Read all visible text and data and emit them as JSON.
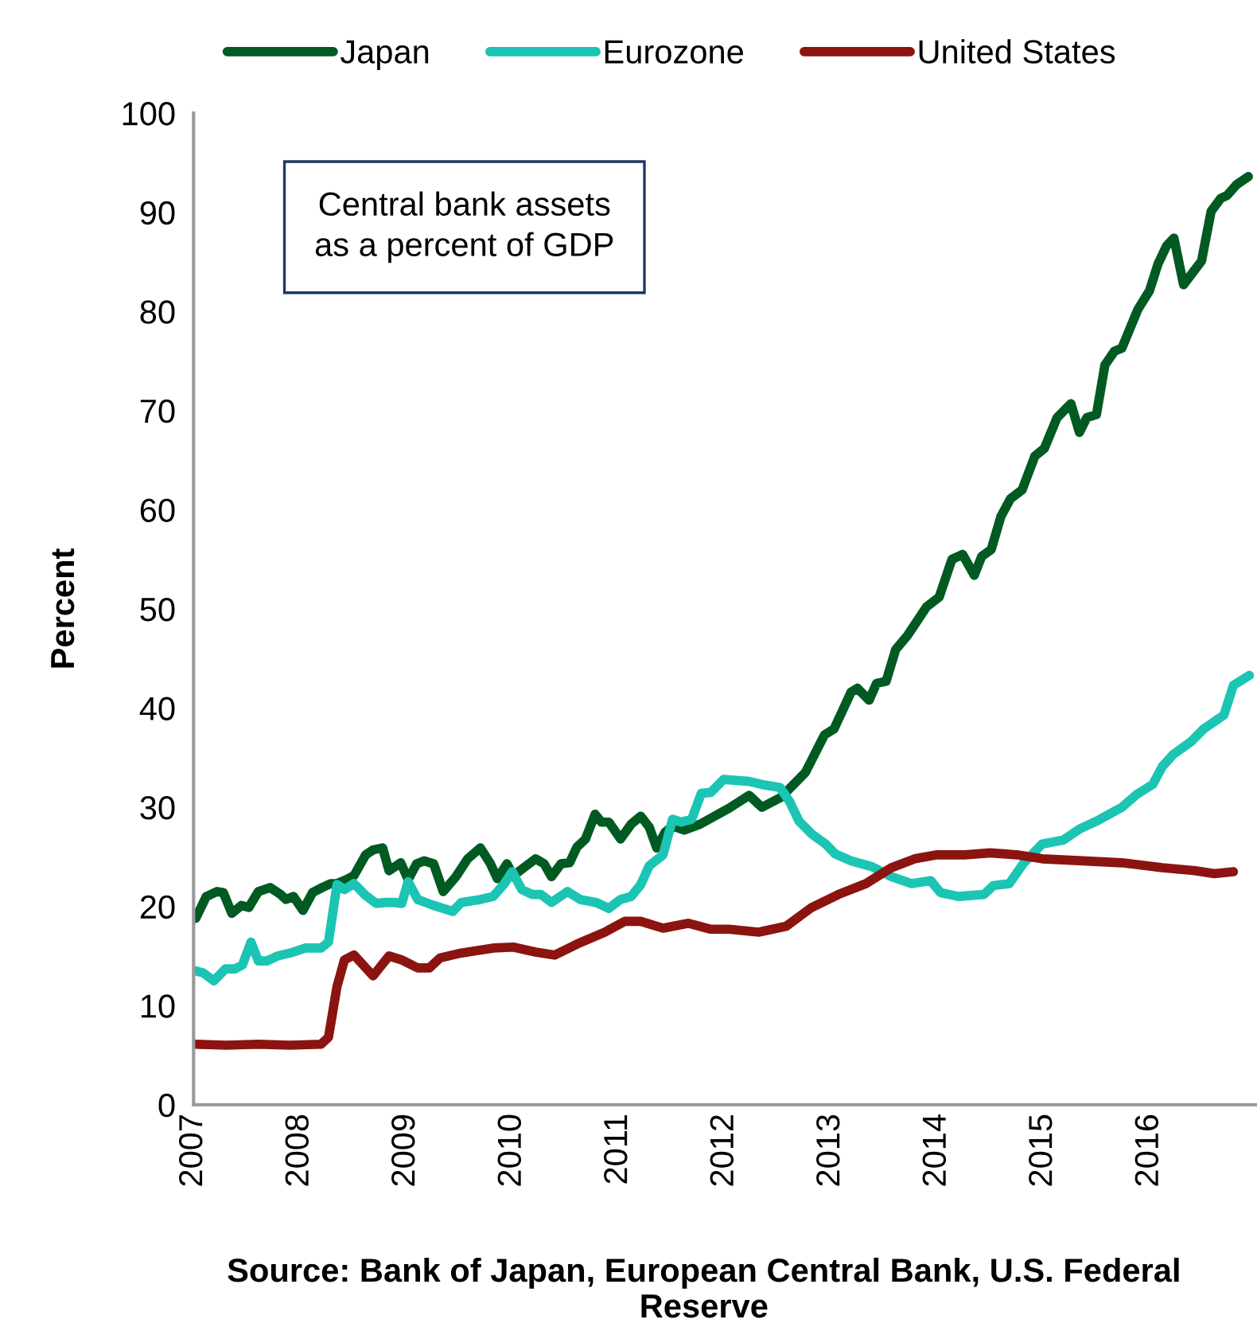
{
  "chart_data": {
    "type": "line",
    "ylabel": "Percent",
    "annotations": [
      "Central bank assets as a percent of GDP",
      "Source: Bank of Japan, European Central Bank, U.S. Federal Reserve"
    ],
    "xlim": [
      2007,
      2017
    ],
    "xticks": [
      2007,
      2008,
      2009,
      2010,
      2011,
      2012,
      2013,
      2014,
      2015,
      2016
    ],
    "ylim": [
      0,
      100
    ],
    "yticks": [
      0,
      10,
      20,
      30,
      40,
      50,
      60,
      70,
      80,
      90,
      100
    ],
    "grid": false,
    "legend": "top",
    "marker": "none",
    "line_style": "solid",
    "series": [
      {
        "name": "Japan",
        "color": "#005a22",
        "x": [
          2007.02,
          2007.12,
          2007.22,
          2007.28,
          2007.36,
          2007.45,
          2007.52,
          2007.61,
          2007.72,
          2007.82,
          2007.87,
          2007.94,
          2008.03,
          2008.12,
          2008.21,
          2008.29,
          2008.35,
          2008.44,
          2008.51,
          2008.62,
          2008.69,
          2008.78,
          2008.84,
          2008.95,
          2009.02,
          2009.1,
          2009.17,
          2009.26,
          2009.35,
          2009.47,
          2009.58,
          2009.7,
          2009.79,
          2009.86,
          2009.95,
          2010.01,
          2010.12,
          2010.22,
          2010.3,
          2010.37,
          2010.46,
          2010.54,
          2010.61,
          2010.69,
          2010.78,
          2010.84,
          2010.91,
          2011.02,
          2011.12,
          2011.21,
          2011.29,
          2011.36,
          2011.44,
          2011.51,
          2011.62,
          2011.77,
          2012.04,
          2012.23,
          2012.35,
          2012.53,
          2012.76,
          2012.94,
          2013.03,
          2013.19,
          2013.25,
          2013.36,
          2013.43,
          2013.52,
          2013.61,
          2013.72,
          2013.9,
          2014.02,
          2014.14,
          2014.24,
          2014.35,
          2014.42,
          2014.51,
          2014.6,
          2014.69,
          2014.8,
          2014.92,
          2015.01,
          2015.13,
          2015.26,
          2015.34,
          2015.41,
          2015.5,
          2015.58,
          2015.67,
          2015.74,
          2015.89,
          2016.0,
          2016.08,
          2016.16,
          2016.23,
          2016.32,
          2016.49,
          2016.58,
          2016.67,
          2016.73,
          2016.82,
          2016.93
        ],
        "values": [
          18.8,
          21,
          21.5,
          21.4,
          19.3,
          20.1,
          19.9,
          21.5,
          21.9,
          21.2,
          20.7,
          21,
          19.6,
          21.4,
          21.9,
          22.3,
          22.3,
          22.7,
          23.1,
          25.2,
          25.7,
          25.9,
          23.6,
          24.4,
          22.7,
          24.3,
          24.6,
          24.3,
          21.5,
          23,
          24.8,
          25.9,
          24.4,
          22.8,
          24.3,
          23.1,
          24,
          24.8,
          24.3,
          23,
          24.3,
          24.4,
          26,
          26.8,
          29.3,
          28.5,
          28.5,
          26.8,
          28.3,
          29.1,
          28,
          25.9,
          27.5,
          28.1,
          27.7,
          28.3,
          29.9,
          31.2,
          30,
          31,
          33.5,
          37.3,
          37.9,
          41.6,
          42,
          40.8,
          42.5,
          42.7,
          45.9,
          47.3,
          50.2,
          51.2,
          55,
          55.5,
          53.4,
          55.3,
          56,
          59.3,
          61.1,
          62,
          65.4,
          66.2,
          69.3,
          70.7,
          67.8,
          69.3,
          69.6,
          74.6,
          76,
          76.3,
          80.2,
          82.1,
          84.8,
          86.6,
          87.4,
          82.7,
          85.1,
          90.1,
          91.4,
          91.7,
          92.8,
          93.6
        ]
      },
      {
        "name": "Eurozone",
        "color": "#1cc4b4",
        "x": [
          2007.02,
          2007.09,
          2007.19,
          2007.3,
          2007.39,
          2007.46,
          2007.54,
          2007.61,
          2007.69,
          2007.79,
          2007.91,
          2008.05,
          2008.2,
          2008.27,
          2008.35,
          2008.42,
          2008.51,
          2008.62,
          2008.72,
          2008.81,
          2008.89,
          2008.96,
          2009.02,
          2009.11,
          2009.26,
          2009.44,
          2009.52,
          2009.7,
          2009.82,
          2009.92,
          2010.0,
          2010.09,
          2010.19,
          2010.27,
          2010.37,
          2010.52,
          2010.64,
          2010.79,
          2010.91,
          2011.02,
          2011.12,
          2011.21,
          2011.29,
          2011.42,
          2011.51,
          2011.59,
          2011.69,
          2011.78,
          2011.87,
          2011.99,
          2012.23,
          2012.35,
          2012.52,
          2012.61,
          2012.7,
          2012.82,
          2012.95,
          2013.04,
          2013.19,
          2013.39,
          2013.57,
          2013.76,
          2013.94,
          2014.03,
          2014.2,
          2014.44,
          2014.53,
          2014.68,
          2014.81,
          2014.99,
          2015.19,
          2015.34,
          2015.5,
          2015.74,
          2015.88,
          2016.03,
          2016.12,
          2016.22,
          2016.39,
          2016.51,
          2016.7,
          2016.79,
          2016.94
        ],
        "values": [
          13.5,
          13.3,
          12.5,
          13.7,
          13.7,
          14.1,
          16.4,
          14.5,
          14.5,
          15,
          15.3,
          15.8,
          15.8,
          16.4,
          22.2,
          21.7,
          22.3,
          21.1,
          20.3,
          20.4,
          20.4,
          20.3,
          22.5,
          20.7,
          20.1,
          19.5,
          20.4,
          20.7,
          21,
          22.2,
          23.5,
          21.7,
          21.2,
          21.2,
          20.4,
          21.5,
          20.7,
          20.4,
          19.8,
          20.7,
          21,
          22.2,
          24.1,
          25.2,
          28.8,
          28.5,
          28.8,
          31.4,
          31.5,
          32.8,
          32.6,
          32.3,
          32,
          30.6,
          28.6,
          27.3,
          26.3,
          25.3,
          24.6,
          24,
          23,
          22.3,
          22.6,
          21.4,
          21,
          21.2,
          22.1,
          22.3,
          24.3,
          26.3,
          26.7,
          27.8,
          28.6,
          30,
          31.3,
          32.3,
          34.1,
          35.3,
          36.6,
          37.9,
          39.3,
          42.3,
          43.3
        ]
      },
      {
        "name": "United States",
        "color": "#8b1410",
        "x": [
          2007.02,
          2007.31,
          2007.61,
          2007.91,
          2008.2,
          2008.27,
          2008.35,
          2008.42,
          2008.51,
          2008.69,
          2008.84,
          2008.96,
          2009.11,
          2009.22,
          2009.32,
          2009.52,
          2009.82,
          2010.01,
          2010.22,
          2010.4,
          2010.61,
          2010.87,
          2011.06,
          2011.21,
          2011.42,
          2011.66,
          2011.87,
          2012.04,
          2012.32,
          2012.58,
          2012.82,
          2013.07,
          2013.33,
          2013.57,
          2013.79,
          2014.0,
          2014.26,
          2014.5,
          2014.75,
          2014.99,
          2015.37,
          2015.74,
          2016.12,
          2016.43,
          2016.61,
          2016.79
        ],
        "values": [
          6.1,
          6,
          6.1,
          6,
          6.1,
          6.8,
          11.9,
          14.6,
          15.1,
          13,
          15,
          14.6,
          13.8,
          13.8,
          14.8,
          15.3,
          15.8,
          15.9,
          15.4,
          15.1,
          16.2,
          17.4,
          18.5,
          18.5,
          17.8,
          18.3,
          17.7,
          17.7,
          17.4,
          18,
          19.9,
          21.2,
          22.3,
          23.9,
          24.8,
          25.2,
          25.2,
          25.4,
          25.2,
          24.8,
          24.6,
          24.4,
          23.9,
          23.6,
          23.3,
          23.5
        ]
      }
    ]
  }
}
